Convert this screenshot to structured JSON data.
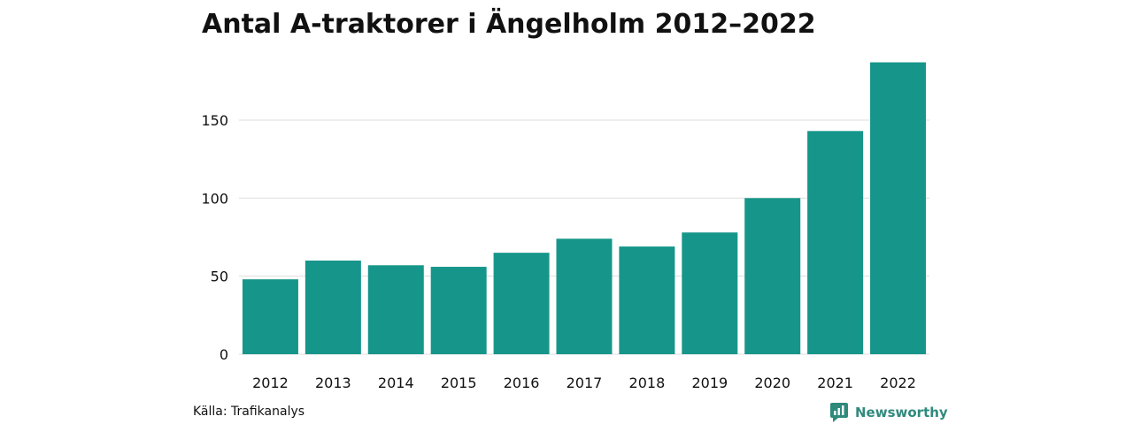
{
  "title": "Antal A-traktorer i Ängelholm 2012–2022",
  "source": "Källa: Trafikanalys",
  "brand": {
    "name": "Newsworthy",
    "icon": "newsworthy-logo-icon"
  },
  "colors": {
    "bar": "#16968a",
    "grid": "#dddddd",
    "brand": "#2f8a7c",
    "text": "#111111"
  },
  "chart_data": {
    "type": "bar",
    "title": "Antal A-traktorer i Ängelholm 2012–2022",
    "xlabel": "",
    "ylabel": "",
    "categories": [
      "2012",
      "2013",
      "2014",
      "2015",
      "2016",
      "2017",
      "2018",
      "2019",
      "2020",
      "2021",
      "2022"
    ],
    "values": [
      48,
      60,
      57,
      56,
      65,
      74,
      69,
      78,
      100,
      143,
      187
    ],
    "ylim": [
      0,
      190
    ],
    "yticks": [
      0,
      50,
      100,
      150
    ],
    "grid": true,
    "legend": "none"
  }
}
